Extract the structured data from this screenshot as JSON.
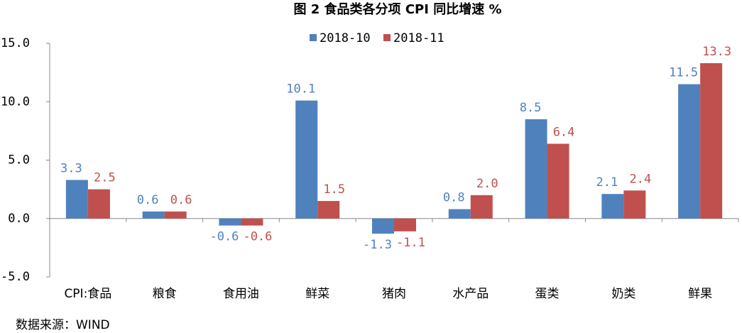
{
  "chart_data": {
    "type": "bar",
    "title": "图 2  食品类各分项 CPI 同比增速 %",
    "source": "数据来源：WIND",
    "categories": [
      "CPI:食品",
      "粮食",
      "食用油",
      "鲜菜",
      "猪肉",
      "水产品",
      "蛋类",
      "奶类",
      "鲜果"
    ],
    "series": [
      {
        "name": "2018-10",
        "color": "#4f81bd",
        "values": [
          3.3,
          0.6,
          -0.6,
          10.1,
          -1.3,
          0.8,
          8.5,
          2.1,
          11.5
        ],
        "value_labels": [
          "3.3",
          "0.6",
          "-0.6",
          "10.1",
          "-1.3",
          "0.8",
          "8.5",
          "2.1",
          "11.5"
        ]
      },
      {
        "name": "2018-11",
        "color": "#c0504d",
        "values": [
          2.5,
          0.6,
          -0.6,
          1.5,
          -1.1,
          2.0,
          6.4,
          2.4,
          13.3
        ],
        "value_labels": [
          "2.5",
          "0.6",
          "-0.6",
          "1.5",
          "-1.1",
          "2.0",
          "6.4",
          "2.4",
          "13.3"
        ]
      }
    ],
    "ylim": [
      -5,
      15
    ],
    "yticks": [
      {
        "value": -5,
        "label": "-5.0"
      },
      {
        "value": 0,
        "label": "0.0"
      },
      {
        "value": 5,
        "label": "5.0"
      },
      {
        "value": 10,
        "label": "10.0"
      },
      {
        "value": 15,
        "label": "15.0"
      }
    ],
    "legend": "top"
  }
}
